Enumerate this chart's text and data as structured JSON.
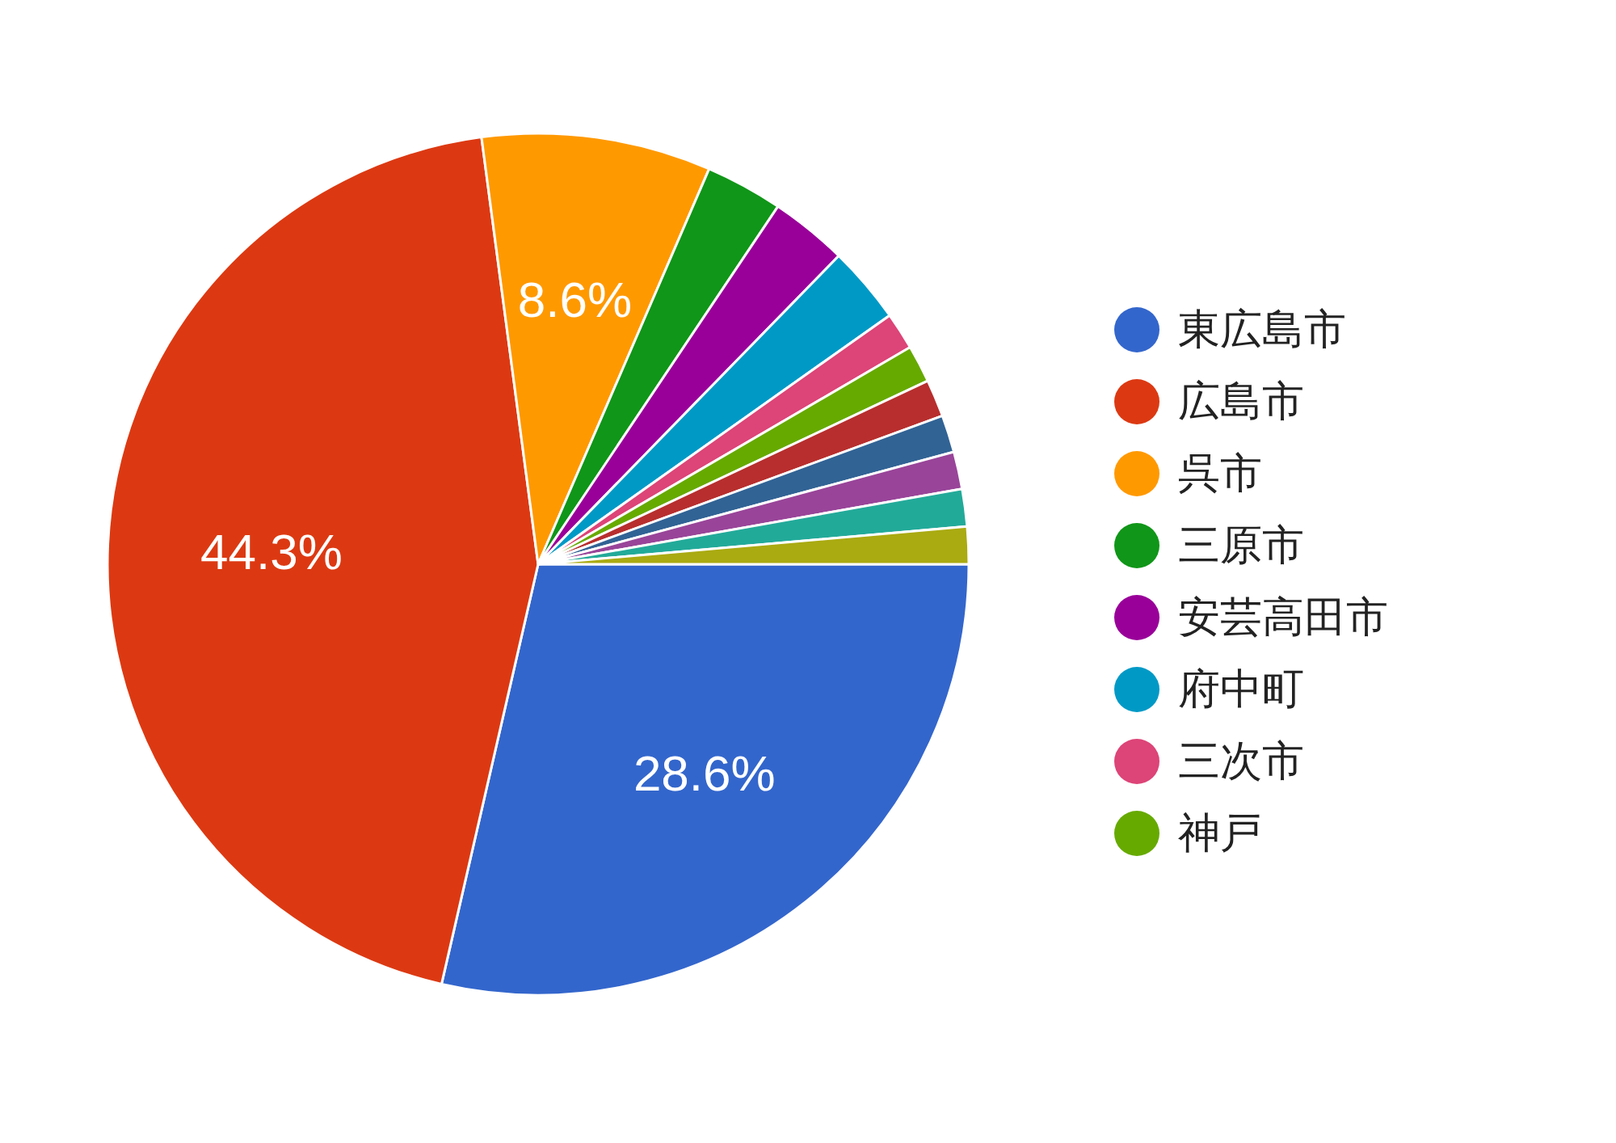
{
  "chart_data": {
    "type": "pie",
    "categories": [
      "東広島市",
      "広島市",
      "呉市",
      "三原市",
      "安芸高田市",
      "府中町",
      "三次市",
      "神戸",
      null,
      null,
      null,
      null,
      null
    ],
    "values": [
      28.6,
      44.3,
      8.6,
      2.9,
      2.9,
      2.9,
      1.4,
      1.4,
      1.4,
      1.4,
      1.4,
      1.4,
      1.4
    ],
    "colors": [
      "#3366cc",
      "#dc3912",
      "#ff9900",
      "#109618",
      "#990099",
      "#0099c6",
      "#dd4477",
      "#66aa00",
      "#b82e2e",
      "#316395",
      "#994499",
      "#22aa99",
      "#aaaa11"
    ],
    "value_labels": [
      "28.6%",
      "44.3%",
      "8.6%",
      null,
      null,
      null,
      null,
      null,
      null,
      null,
      null,
      null,
      null
    ],
    "legend": "right"
  }
}
